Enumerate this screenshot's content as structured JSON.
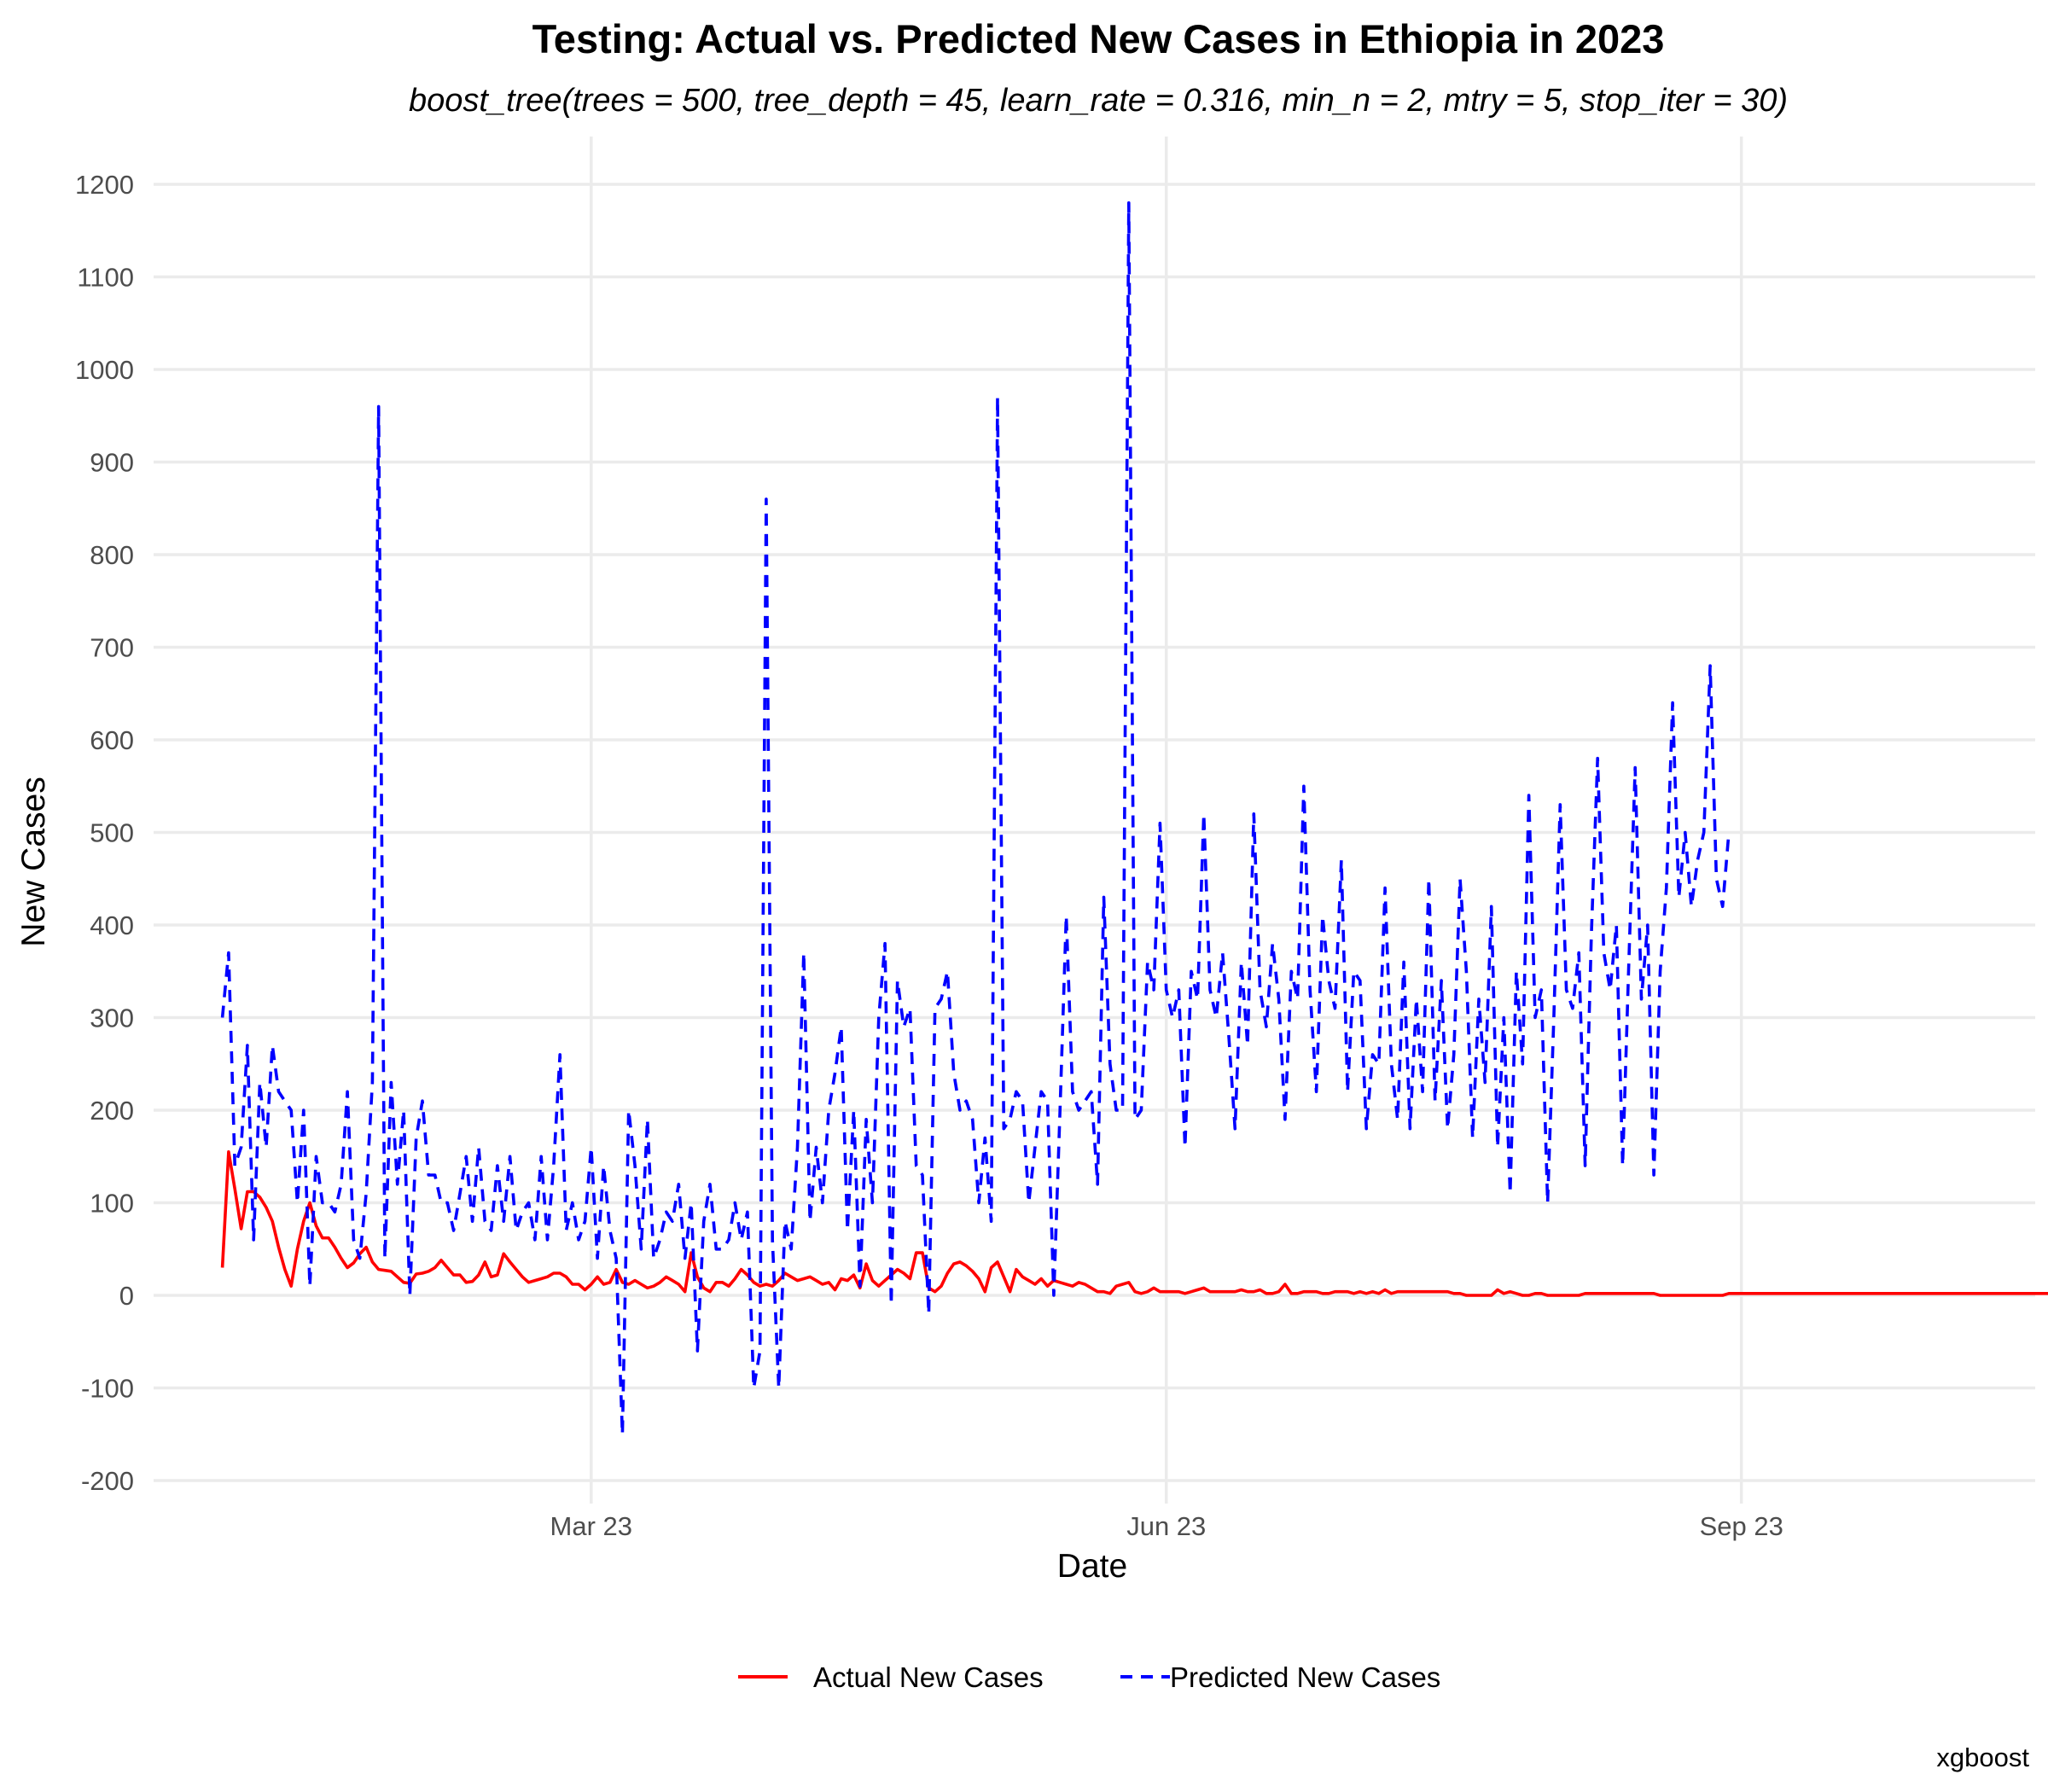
{
  "chart_data": {
    "type": "line",
    "title": "Testing: Actual vs. Predicted New Cases in Ethiopia in 2023",
    "subtitle": "boost_tree(trees = 500, tree_depth = 45, learn_rate = 0.316, min_n = 2, mtry = 5, stop_iter = 30)",
    "xlabel": "Date",
    "ylabel": "New Cases",
    "caption": "xgboost",
    "xlim": [
      "2022-12-21",
      "2023-10-18"
    ],
    "ylim": [
      -200,
      1200
    ],
    "x_ticks": [
      {
        "date": "2023-03-01",
        "label": "Mar 23"
      },
      {
        "date": "2023-06-01",
        "label": "Jun 23"
      },
      {
        "date": "2023-09-01",
        "label": "Sep 23"
      }
    ],
    "y_ticks": [
      -200,
      -100,
      0,
      100,
      200,
      300,
      400,
      500,
      600,
      700,
      800,
      900,
      1000,
      1100,
      1200
    ],
    "grid": true,
    "legend_position": "bottom",
    "start_date": "2023-01-01",
    "series": [
      {
        "name": "Actual New Cases",
        "color": "#ff0000",
        "dash": "solid",
        "values": [
          30,
          155,
          115,
          72,
          112,
          112,
          106,
          95,
          80,
          52,
          28,
          10,
          50,
          80,
          100,
          75,
          62,
          62,
          52,
          40,
          30,
          35,
          45,
          52,
          36,
          28,
          27,
          26,
          20,
          14,
          13,
          23,
          24,
          26,
          30,
          38,
          30,
          22,
          22,
          14,
          15,
          22,
          36,
          20,
          22,
          45,
          36,
          28,
          20,
          14,
          16,
          18,
          20,
          24,
          24,
          20,
          12,
          12,
          6,
          12,
          20,
          12,
          14,
          28,
          14,
          12,
          16,
          12,
          8,
          10,
          14,
          20,
          16,
          12,
          4,
          46,
          20,
          8,
          4,
          14,
          14,
          10,
          18,
          28,
          22,
          14,
          10,
          12,
          10,
          16,
          24,
          20,
          16,
          18,
          20,
          16,
          12,
          14,
          6,
          18,
          16,
          22,
          8,
          34,
          16,
          10,
          16,
          22,
          28,
          24,
          18,
          46,
          46,
          8,
          4,
          10,
          24,
          34,
          36,
          32,
          26,
          18,
          4,
          30,
          36,
          20,
          4,
          28,
          20,
          16,
          12,
          18,
          10,
          16,
          14,
          12,
          10,
          14,
          12,
          8,
          4,
          4,
          2,
          10,
          12,
          14,
          4,
          2,
          4,
          8,
          4,
          4,
          4,
          4,
          2,
          4,
          6,
          8,
          4,
          4,
          4,
          4,
          4,
          6,
          4,
          4,
          6,
          2,
          2,
          4,
          12,
          2,
          2,
          4,
          4,
          4,
          2,
          2,
          4,
          4,
          4,
          2,
          4,
          2,
          4,
          2,
          6,
          2,
          4,
          4,
          4,
          4,
          4,
          4,
          4,
          4,
          4,
          2,
          2,
          0,
          0,
          0,
          0,
          0,
          6,
          2,
          4,
          2,
          0,
          0,
          2,
          2,
          0,
          0,
          0,
          0,
          0,
          0,
          2,
          2,
          2,
          2,
          2,
          2,
          2,
          2,
          2,
          2,
          2,
          2,
          0,
          0,
          0,
          0,
          0,
          0,
          0,
          0,
          0,
          0,
          0,
          2,
          2,
          2,
          2,
          2,
          2,
          2,
          2,
          2,
          2,
          2,
          2,
          2,
          2,
          2,
          2,
          2,
          2,
          2,
          2,
          2,
          2,
          2,
          2,
          2,
          2,
          2,
          2,
          2,
          2,
          2,
          2,
          2,
          2,
          2,
          2,
          2,
          2,
          2,
          2,
          2,
          2,
          2,
          2,
          2,
          2,
          2,
          2,
          2,
          2,
          2,
          2,
          2,
          2,
          2,
          1,
          1,
          1,
          1,
          1,
          1,
          1,
          1,
          1,
          1,
          1,
          1,
          1,
          1,
          1,
          1,
          1,
          1,
          1,
          1,
          1
        ]
      },
      {
        "name": "Predicted New Cases",
        "color": "#0000ff",
        "dash": "dashed",
        "values": [
          300,
          370,
          140,
          160,
          270,
          60,
          230,
          160,
          270,
          220,
          210,
          200,
          100,
          200,
          10,
          150,
          100,
          100,
          90,
          120,
          220,
          60,
          40,
          110,
          230,
          960,
          40,
          230,
          120,
          200,
          0,
          170,
          210,
          130,
          130,
          100,
          100,
          70,
          110,
          150,
          80,
          160,
          80,
          70,
          140,
          80,
          150,
          70,
          90,
          100,
          60,
          150,
          60,
          140,
          260,
          70,
          100,
          60,
          80,
          160,
          40,
          140,
          70,
          40,
          -150,
          200,
          140,
          50,
          190,
          40,
          60,
          90,
          80,
          120,
          40,
          100,
          -60,
          80,
          120,
          50,
          50,
          60,
          100,
          60,
          90,
          -100,
          -60,
          860,
          60,
          -100,
          80,
          50,
          160,
          370,
          80,
          160,
          100,
          200,
          240,
          290,
          70,
          200,
          10,
          190,
          100,
          300,
          380,
          -10,
          340,
          290,
          310,
          140,
          130,
          -20,
          310,
          320,
          350,
          240,
          200,
          210,
          190,
          100,
          170,
          80,
          970,
          180,
          190,
          220,
          210,
          100,
          160,
          220,
          210,
          0,
          200,
          410,
          220,
          200,
          210,
          220,
          120,
          430,
          250,
          200,
          200,
          1180,
          190,
          200,
          360,
          330,
          510,
          330,
          300,
          330,
          160,
          350,
          320,
          520,
          330,
          300,
          370,
          280,
          180,
          360,
          270,
          520,
          330,
          290,
          380,
          320,
          190,
          350,
          320,
          550,
          330,
          220,
          410,
          340,
          310,
          470,
          220,
          350,
          340,
          180,
          260,
          250,
          440,
          250,
          190,
          360,
          180,
          320,
          220,
          450,
          210,
          340,
          180,
          260,
          450,
          350,
          170,
          320,
          230,
          420,
          160,
          300,
          110,
          350,
          250,
          540,
          300,
          330,
          100,
          300,
          530,
          330,
          310,
          370,
          140,
          390,
          580,
          370,
          330,
          400,
          140,
          360,
          570,
          320,
          400,
          130,
          350,
          440,
          640,
          430,
          500,
          420,
          470,
          500,
          680,
          450,
          420,
          500
        ]
      }
    ]
  }
}
